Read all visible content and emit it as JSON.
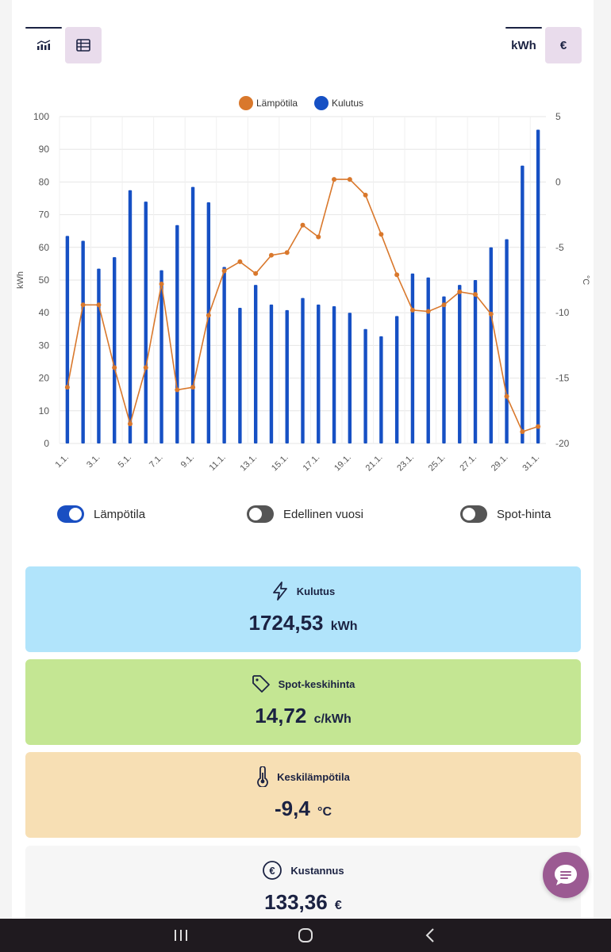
{
  "view_toggle": {
    "chart_icon": "bar-chart-icon",
    "table_icon": "table-icon"
  },
  "unit_toggle": {
    "kwh_label": "kWh",
    "eur_label": "€"
  },
  "chart_data": {
    "type": "bar+line",
    "legend": [
      "Lämpötila",
      "Kulutus"
    ],
    "ylabel_left": "kWh",
    "ylabel_right": "°C",
    "ylim_left": [
      0,
      100
    ],
    "ylim_right": [
      -20,
      5
    ],
    "yticks_left": [
      "100",
      "90",
      "80",
      "70",
      "60",
      "50",
      "40",
      "30",
      "20",
      "10",
      "0"
    ],
    "yticks_right": [
      "5",
      "0",
      "-5",
      "-10",
      "-15",
      "-20"
    ],
    "x_tick_labels": [
      "1.1.",
      "3.1.",
      "5.1.",
      "7.1.",
      "9.1.",
      "11.1.",
      "13.1.",
      "15.1.",
      "17.1.",
      "19.1.",
      "21.1.",
      "23.1.",
      "25.1.",
      "27.1.",
      "29.1.",
      "31.1."
    ],
    "days": 31,
    "series": [
      {
        "name": "Kulutus",
        "type": "bar",
        "color": "#1650c4",
        "values": [
          63.5,
          62,
          53.5,
          57,
          77.5,
          74,
          53,
          66.8,
          78.5,
          73.8,
          54,
          41.5,
          48.5,
          42.5,
          40.8,
          44.5,
          42.5,
          42,
          40,
          35,
          32.8,
          39,
          52,
          50.8,
          45,
          48.5,
          50,
          60,
          62.5,
          85,
          96
        ]
      },
      {
        "name": "Lämpötila",
        "type": "line",
        "color": "#d9782c",
        "values": [
          -15.7,
          -9.4,
          -9.4,
          -14.2,
          -18.5,
          -14.2,
          -7.8,
          -15.9,
          -15.7,
          -10.2,
          -6.8,
          -6.1,
          -7.0,
          -5.6,
          -5.4,
          -3.3,
          -4.2,
          0.2,
          0.2,
          -1.0,
          -4.0,
          -7.1,
          -9.8,
          -9.9,
          -9.4,
          -8.4,
          -8.6,
          -10.1,
          -16.4,
          -19.1,
          -18.7
        ]
      }
    ]
  },
  "switches": [
    {
      "label": "Lämpötila",
      "state": "on"
    },
    {
      "label": "Edellinen vuosi",
      "state": "off"
    },
    {
      "label": "Spot-hinta",
      "state": "off"
    }
  ],
  "cards": [
    {
      "title": "Kulutus",
      "value": "1724,53",
      "unit": "kWh",
      "icon": "lightning-icon",
      "bg": "#b1e4fb"
    },
    {
      "title": "Spot-keskihinta",
      "value": "14,72",
      "unit": "c/kWh",
      "icon": "price-tag-icon",
      "bg": "#c4e693"
    },
    {
      "title": "Keskilämpötila",
      "value": "-9,4",
      "unit": "°C",
      "icon": "thermometer-icon",
      "bg": "#f7dfb4"
    },
    {
      "title": "Kustannus",
      "value": "133,36",
      "unit": "€",
      "icon": "euro-icon",
      "bg": "#f6f6f6"
    }
  ],
  "fab": {
    "icon": "chat-icon"
  },
  "navbar": {
    "recent_icon": "recent-apps-icon",
    "home_icon": "home-icon",
    "back_icon": "back-icon"
  }
}
